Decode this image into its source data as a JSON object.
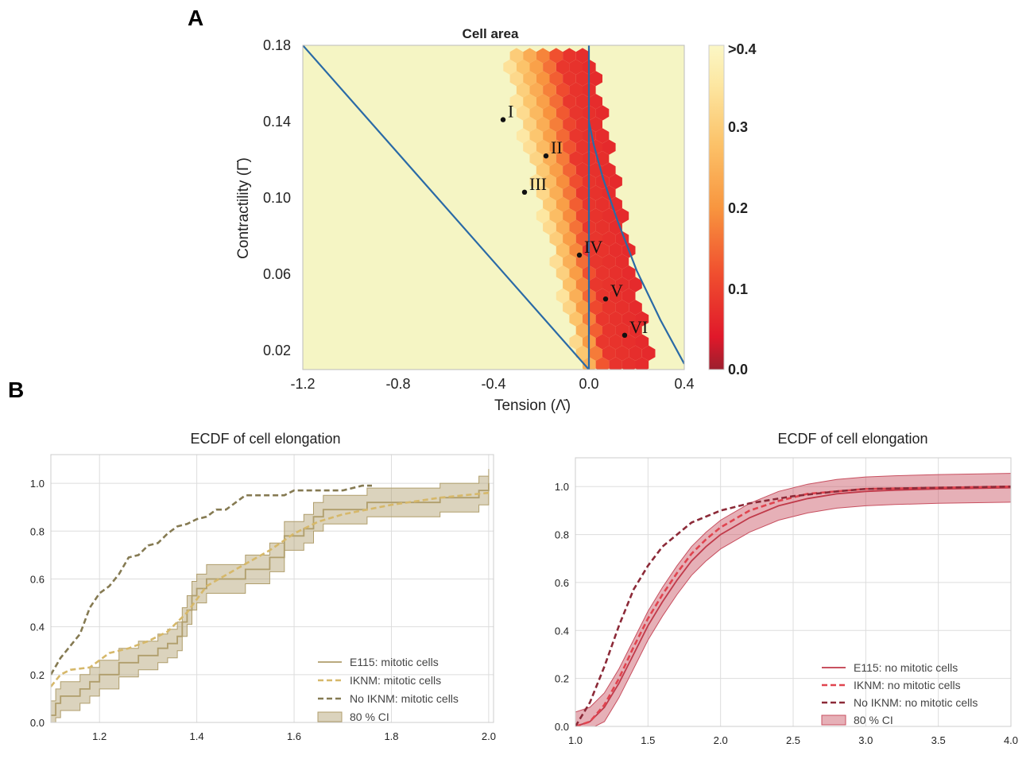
{
  "panels": {
    "a": "A",
    "b": "B"
  },
  "chart_data": [
    {
      "type": "heatmap",
      "title": "Cell area",
      "xlabel": "Tension (Λ̄)",
      "ylabel": "Contractility (Γ̄)",
      "xlim": [
        -1.2,
        0.4
      ],
      "ylim": [
        0.01,
        0.18
      ],
      "xticks": [
        "-1.2",
        "-0.8",
        "-0.4",
        "0.0",
        "0.4"
      ],
      "yticks": [
        "0.02",
        "0.06",
        "0.10",
        "0.14",
        "0.18"
      ],
      "colorbar": {
        "ticks": [
          "0.0",
          "0.1",
          "0.2",
          "0.3",
          ">0.4"
        ],
        "range": [
          0,
          0.4
        ]
      },
      "points": [
        {
          "label": "I",
          "x": -0.36,
          "y": 0.141
        },
        {
          "label": "II",
          "x": -0.18,
          "y": 0.122
        },
        {
          "label": "III",
          "x": -0.27,
          "y": 0.103
        },
        {
          "label": "IV",
          "x": -0.04,
          "y": 0.07
        },
        {
          "label": "V",
          "x": 0.07,
          "y": 0.047
        },
        {
          "label": "VI",
          "x": 0.15,
          "y": 0.028
        }
      ],
      "curves": [
        {
          "x": [
            -1.2,
            0.0
          ],
          "y": [
            0.18,
            0.01
          ]
        },
        {
          "x": [
            0.0,
            0.0
          ],
          "y": [
            0.01,
            0.18
          ]
        },
        {
          "x": [
            0.0,
            0.02,
            0.06,
            0.12,
            0.2,
            0.3,
            0.4
          ],
          "y": [
            0.14,
            0.128,
            0.11,
            0.088,
            0.062,
            0.036,
            0.013
          ]
        }
      ]
    },
    {
      "type": "line",
      "title": "ECDF of cell elongation",
      "xlim": [
        1.1,
        2.01
      ],
      "ylim": [
        0.0,
        1.12
      ],
      "xticks": [
        1.2,
        1.4,
        1.6,
        1.8,
        2.0
      ],
      "yticks": [
        0.0,
        0.2,
        0.4,
        0.6,
        0.8,
        1.0
      ],
      "series": [
        {
          "name": "E115: mitotic cells",
          "color": "#b09e6c",
          "style": "solid",
          "x": [
            1.1,
            1.11,
            1.12,
            1.13,
            1.16,
            1.18,
            1.2,
            1.22,
            1.24,
            1.26,
            1.28,
            1.3,
            1.32,
            1.34,
            1.36,
            1.37,
            1.38,
            1.39,
            1.4,
            1.42,
            1.46,
            1.5,
            1.55,
            1.58,
            1.6,
            1.62,
            1.64,
            1.66,
            1.7,
            1.75,
            1.8,
            1.9,
            1.98,
            2.0
          ],
          "y": [
            0.03,
            0.08,
            0.11,
            0.11,
            0.14,
            0.17,
            0.2,
            0.2,
            0.25,
            0.25,
            0.28,
            0.28,
            0.31,
            0.33,
            0.36,
            0.42,
            0.47,
            0.53,
            0.56,
            0.6,
            0.6,
            0.64,
            0.69,
            0.78,
            0.78,
            0.81,
            0.86,
            0.89,
            0.89,
            0.92,
            0.92,
            0.94,
            0.97,
            1.0
          ]
        },
        {
          "name": "IKNM: mitotic cells",
          "color": "#d6b86a",
          "style": "dashed",
          "x": [
            1.1,
            1.12,
            1.14,
            1.18,
            1.2,
            1.22,
            1.26,
            1.3,
            1.34,
            1.38,
            1.42,
            1.48,
            1.55,
            1.6,
            1.65,
            1.7,
            1.8,
            1.9,
            2.0
          ],
          "y": [
            0.15,
            0.2,
            0.22,
            0.23,
            0.26,
            0.29,
            0.31,
            0.34,
            0.38,
            0.46,
            0.57,
            0.64,
            0.72,
            0.79,
            0.84,
            0.87,
            0.91,
            0.94,
            0.96
          ]
        },
        {
          "name": "No IKNM: mitotic cells",
          "color": "#857a52",
          "style": "dashed",
          "x": [
            1.1,
            1.12,
            1.14,
            1.16,
            1.18,
            1.2,
            1.22,
            1.24,
            1.26,
            1.28,
            1.3,
            1.32,
            1.34,
            1.36,
            1.38,
            1.4,
            1.42,
            1.44,
            1.46,
            1.48,
            1.5,
            1.55,
            1.58,
            1.6,
            1.65,
            1.7,
            1.74,
            1.76
          ],
          "y": [
            0.2,
            0.27,
            0.32,
            0.37,
            0.48,
            0.54,
            0.57,
            0.62,
            0.69,
            0.7,
            0.74,
            0.75,
            0.79,
            0.82,
            0.83,
            0.85,
            0.86,
            0.89,
            0.89,
            0.92,
            0.95,
            0.95,
            0.95,
            0.97,
            0.97,
            0.97,
            0.99,
            0.99
          ]
        }
      ],
      "ci": {
        "name": "80 % CI",
        "color": "#b09e6c",
        "half_width": 0.06
      }
    },
    {
      "type": "line",
      "title": "ECDF of cell elongation",
      "xlim": [
        1.0,
        4.0
      ],
      "ylim": [
        0.0,
        1.12
      ],
      "xticks": [
        "1.0",
        "1.5",
        "2.0",
        "2.5",
        "3.0",
        "3.5",
        "4.0"
      ],
      "yticks": [
        "0.0",
        "0.2",
        "0.4",
        "0.6",
        "0.8",
        "1.0"
      ],
      "series": [
        {
          "name": "E115: no mitotic cells",
          "color": "#c03a4a",
          "style": "solid",
          "x": [
            1.0,
            1.1,
            1.2,
            1.3,
            1.4,
            1.5,
            1.6,
            1.7,
            1.8,
            1.9,
            2.0,
            2.2,
            2.4,
            2.6,
            2.8,
            3.0,
            3.2,
            3.5,
            4.0
          ],
          "y": [
            0.0,
            0.02,
            0.08,
            0.18,
            0.3,
            0.42,
            0.52,
            0.61,
            0.69,
            0.75,
            0.8,
            0.87,
            0.92,
            0.95,
            0.97,
            0.98,
            0.985,
            0.99,
            0.995
          ]
        },
        {
          "name": "IKNM: no mitotic cells",
          "color": "#e0444f",
          "style": "dashed",
          "x": [
            1.0,
            1.1,
            1.2,
            1.3,
            1.4,
            1.5,
            1.6,
            1.7,
            1.8,
            1.9,
            2.0,
            2.2,
            2.4,
            2.6,
            2.8,
            3.0,
            3.5,
            4.0
          ],
          "y": [
            0.0,
            0.02,
            0.09,
            0.2,
            0.33,
            0.45,
            0.55,
            0.64,
            0.72,
            0.78,
            0.83,
            0.9,
            0.94,
            0.97,
            0.98,
            0.99,
            0.995,
            1.0
          ]
        },
        {
          "name": "No IKNM: no mitotic cells",
          "color": "#8c2a38",
          "style": "dashed",
          "x": [
            1.0,
            1.1,
            1.2,
            1.3,
            1.4,
            1.5,
            1.6,
            1.7,
            1.8,
            2.0,
            2.2,
            2.5,
            2.8,
            3.0,
            3.5,
            4.0
          ],
          "y": [
            0.0,
            0.1,
            0.25,
            0.42,
            0.57,
            0.67,
            0.75,
            0.8,
            0.85,
            0.9,
            0.93,
            0.96,
            0.98,
            0.99,
            0.995,
            1.0
          ]
        }
      ],
      "ci": {
        "name": "80 % CI",
        "color": "#c85060",
        "half_width": 0.06
      }
    }
  ]
}
